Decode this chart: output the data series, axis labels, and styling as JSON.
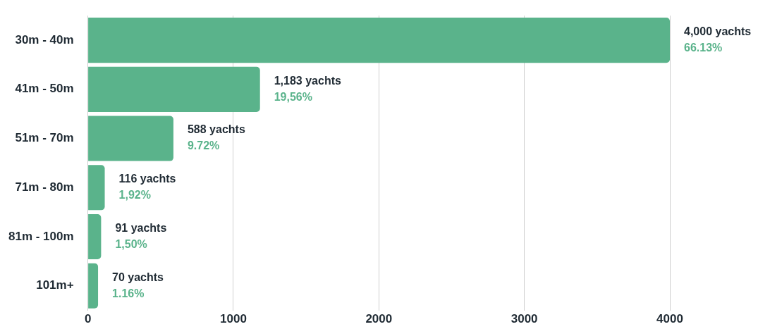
{
  "chart_data": {
    "type": "bar",
    "orientation": "horizontal",
    "categories": [
      "30m - 40m",
      "41m - 50m",
      "51m - 70m",
      "71m - 80m",
      "81m - 100m",
      "101m+"
    ],
    "values": [
      4000,
      1183,
      588,
      116,
      91,
      70
    ],
    "value_labels": [
      "4,000 yachts\n66.13%",
      "1,183 yachts\n19,56%",
      "588 yachts\n9.72%",
      "116 yachts\n1,92%",
      "91 yachts\n1,50%",
      "70 yachts\n1.16%"
    ],
    "color": "#5ab38b",
    "xlim": [
      0,
      4000
    ],
    "xticks": [
      0,
      1000,
      2000,
      3000,
      4000
    ],
    "grid": "x",
    "legend": false
  }
}
